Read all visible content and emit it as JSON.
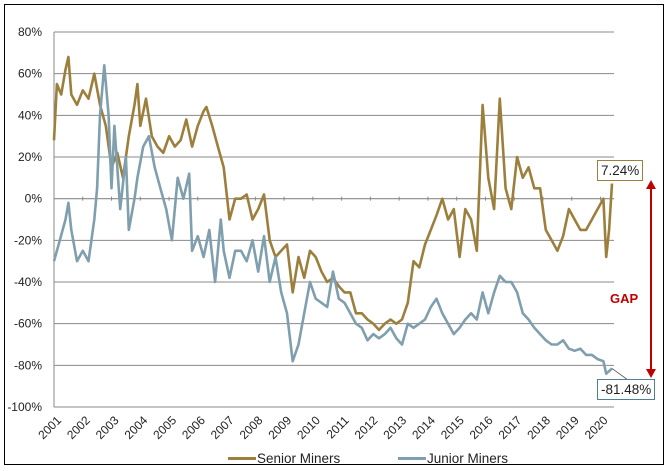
{
  "chart_data": {
    "type": "line",
    "title": "",
    "xlabel": "",
    "ylabel": "",
    "xlim": [
      2001,
      2020.4
    ],
    "ylim": [
      -100,
      80
    ],
    "y_ticks": [
      "80%",
      "60%",
      "40%",
      "20%",
      "0%",
      "-20%",
      "-40%",
      "-60%",
      "-80%",
      "-100%"
    ],
    "y_tick_values": [
      80,
      60,
      40,
      20,
      0,
      -20,
      -40,
      -60,
      -80,
      -100
    ],
    "x_ticks": [
      "2001",
      "2002",
      "2003",
      "2004",
      "2005",
      "2006",
      "2007",
      "2008",
      "2009",
      "2010",
      "2011",
      "2012",
      "2013",
      "2014",
      "2015",
      "2016",
      "2017",
      "2018",
      "2019",
      "2020"
    ],
    "grid": "horizontal",
    "legend_position": "bottom",
    "series": [
      {
        "name": "Senior Miners",
        "color": "#9c7f3c",
        "x": [
          2001.0,
          2001.1,
          2001.25,
          2001.4,
          2001.5,
          2001.6,
          2001.8,
          2002.0,
          2002.2,
          2002.4,
          2002.6,
          2002.8,
          2003.0,
          2003.2,
          2003.4,
          2003.6,
          2003.8,
          2003.9,
          2004.0,
          2004.2,
          2004.4,
          2004.6,
          2004.8,
          2005.0,
          2005.2,
          2005.4,
          2005.6,
          2005.8,
          2006.0,
          2006.2,
          2006.3,
          2006.5,
          2006.7,
          2006.9,
          2007.1,
          2007.3,
          2007.5,
          2007.7,
          2007.9,
          2008.1,
          2008.3,
          2008.5,
          2008.7,
          2008.9,
          2009.1,
          2009.3,
          2009.5,
          2009.7,
          2009.9,
          2010.1,
          2010.3,
          2010.5,
          2010.7,
          2010.9,
          2011.1,
          2011.3,
          2011.5,
          2011.7,
          2011.9,
          2012.1,
          2012.3,
          2012.5,
          2012.7,
          2012.9,
          2013.1,
          2013.3,
          2013.5,
          2013.7,
          2013.9,
          2014.1,
          2014.3,
          2014.5,
          2014.7,
          2014.9,
          2015.1,
          2015.3,
          2015.5,
          2015.7,
          2015.9,
          2016.1,
          2016.3,
          2016.5,
          2016.7,
          2016.9,
          2017.1,
          2017.3,
          2017.5,
          2017.7,
          2017.9,
          2018.1,
          2018.3,
          2018.5,
          2018.7,
          2018.9,
          2019.1,
          2019.3,
          2019.5,
          2019.7,
          2019.9,
          2020.1,
          2020.2,
          2020.3,
          2020.4
        ],
        "values": [
          28,
          55,
          50,
          62,
          68,
          50,
          45,
          52,
          48,
          60,
          45,
          35,
          15,
          22,
          10,
          30,
          45,
          55,
          35,
          48,
          30,
          25,
          22,
          30,
          25,
          28,
          38,
          25,
          35,
          42,
          44,
          35,
          25,
          15,
          -10,
          0,
          0,
          2,
          -10,
          -5,
          2,
          -20,
          -28,
          -25,
          -22,
          -45,
          -28,
          -38,
          -25,
          -28,
          -35,
          -40,
          -38,
          -42,
          -45,
          -45,
          -55,
          -55,
          -58,
          -60,
          -63,
          -60,
          -58,
          -60,
          -58,
          -50,
          -30,
          -33,
          -22,
          -15,
          -8,
          0,
          -10,
          -5,
          -28,
          -5,
          -10,
          -25,
          45,
          10,
          -5,
          48,
          5,
          -5,
          20,
          10,
          15,
          5,
          5,
          -15,
          -20,
          -25,
          -18,
          -5,
          -10,
          -15,
          -15,
          -10,
          -5,
          0,
          -28,
          -15,
          7.24
        ]
      },
      {
        "name": "Junior Miners",
        "color": "#7f9fae",
        "x": [
          2001.0,
          2001.2,
          2001.4,
          2001.5,
          2001.6,
          2001.8,
          2002.0,
          2002.2,
          2002.4,
          2002.5,
          2002.6,
          2002.75,
          2002.9,
          2003.0,
          2003.1,
          2003.3,
          2003.5,
          2003.6,
          2003.8,
          2003.9,
          2004.1,
          2004.3,
          2004.5,
          2004.7,
          2004.9,
          2005.1,
          2005.3,
          2005.5,
          2005.7,
          2005.8,
          2006.0,
          2006.2,
          2006.4,
          2006.6,
          2006.8,
          2006.9,
          2007.1,
          2007.3,
          2007.5,
          2007.7,
          2007.9,
          2008.1,
          2008.3,
          2008.5,
          2008.7,
          2008.9,
          2009.1,
          2009.3,
          2009.5,
          2009.7,
          2009.9,
          2010.1,
          2010.3,
          2010.5,
          2010.7,
          2010.9,
          2011.1,
          2011.3,
          2011.5,
          2011.7,
          2011.9,
          2012.1,
          2012.3,
          2012.5,
          2012.7,
          2012.9,
          2013.1,
          2013.3,
          2013.5,
          2013.7,
          2013.9,
          2014.1,
          2014.3,
          2014.5,
          2014.7,
          2014.9,
          2015.1,
          2015.3,
          2015.5,
          2015.7,
          2015.9,
          2016.1,
          2016.3,
          2016.5,
          2016.7,
          2016.9,
          2017.1,
          2017.3,
          2017.5,
          2017.7,
          2017.9,
          2018.1,
          2018.3,
          2018.5,
          2018.7,
          2018.9,
          2019.1,
          2019.3,
          2019.5,
          2019.7,
          2019.9,
          2020.1,
          2020.2,
          2020.4
        ],
        "values": [
          -30,
          -20,
          -10,
          -2,
          -15,
          -30,
          -25,
          -30,
          -10,
          5,
          40,
          64,
          40,
          5,
          35,
          -5,
          20,
          -15,
          0,
          10,
          25,
          30,
          15,
          5,
          -5,
          -20,
          10,
          0,
          12,
          -25,
          -18,
          -28,
          -15,
          -40,
          -10,
          -25,
          -38,
          -25,
          -25,
          -30,
          -20,
          -35,
          -18,
          -40,
          -28,
          -45,
          -55,
          -78,
          -70,
          -55,
          -40,
          -48,
          -50,
          -52,
          -35,
          -48,
          -50,
          -55,
          -60,
          -62,
          -68,
          -65,
          -67,
          -65,
          -62,
          -67,
          -70,
          -60,
          -62,
          -60,
          -58,
          -52,
          -48,
          -55,
          -60,
          -65,
          -62,
          -58,
          -55,
          -58,
          -45,
          -55,
          -45,
          -37,
          -40,
          -40,
          -45,
          -55,
          -58,
          -62,
          -65,
          -68,
          -70,
          -70,
          -68,
          -72,
          -73,
          -72,
          -75,
          -75,
          -77,
          -78,
          -84,
          -81.48
        ]
      }
    ],
    "annotations": {
      "senior_last": "7.24%",
      "junior_last": "-81.48%",
      "gap_label": "GAP",
      "gap_color": "#c00000"
    }
  }
}
